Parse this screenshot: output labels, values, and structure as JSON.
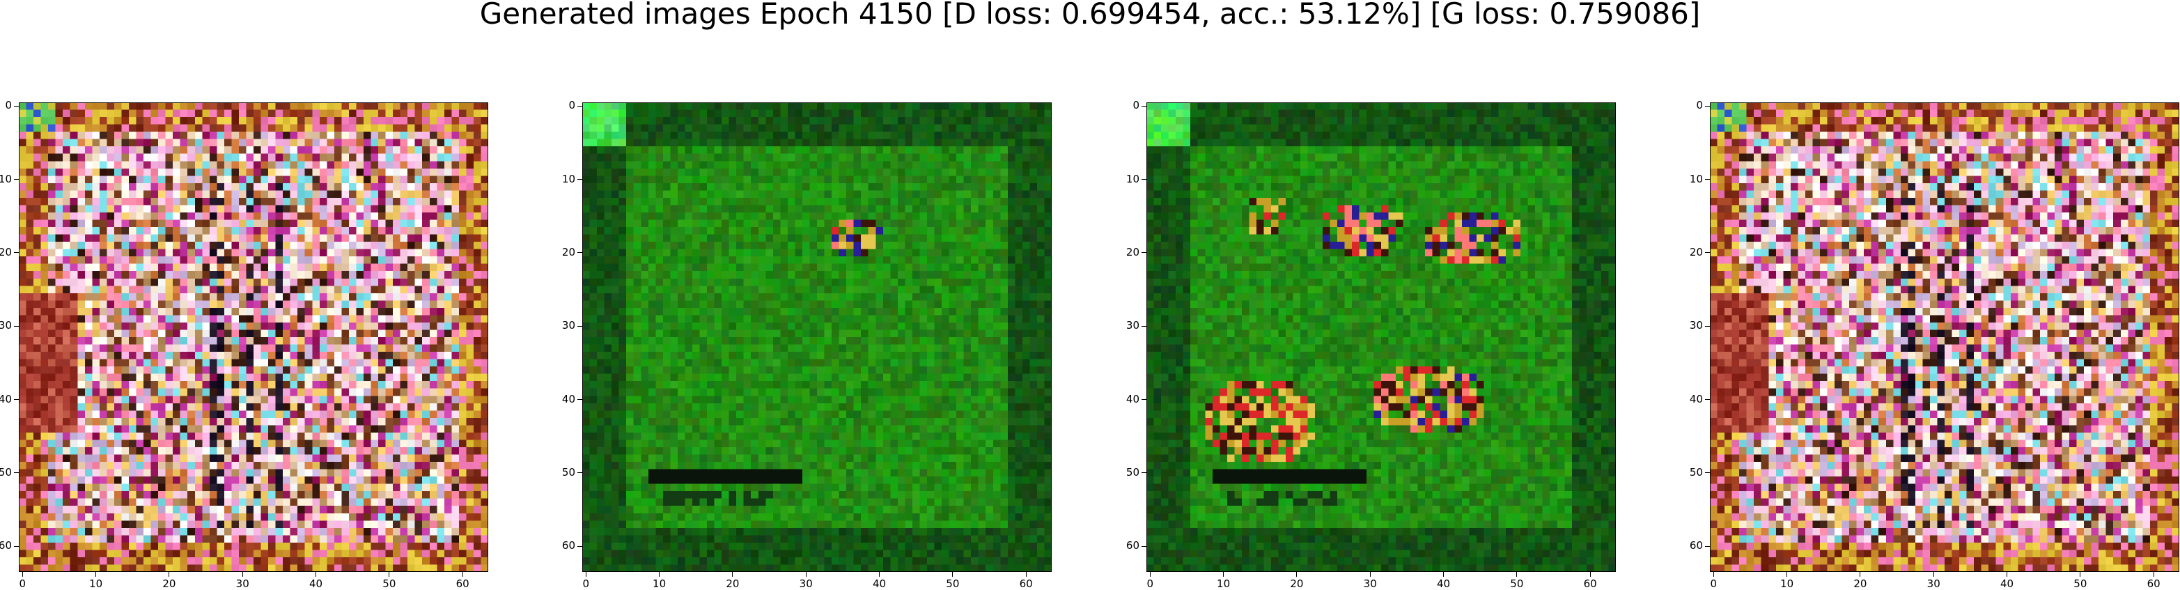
{
  "title": "Generated images Epoch 4150 [D loss: 0.699454, acc.: 53.12%] [G loss: 0.759086]",
  "axes_ticks": {
    "x": [
      "0",
      "10",
      "20",
      "30",
      "40",
      "50",
      "60"
    ],
    "y": [
      "0",
      "10",
      "20",
      "30",
      "40",
      "50",
      "60"
    ]
  },
  "panels": [
    {
      "name": "generated-image-1",
      "palette": "multicolor-noise"
    },
    {
      "name": "generated-image-2",
      "palette": "green"
    },
    {
      "name": "generated-image-3",
      "palette": "green-with-red-yellow-blobs"
    },
    {
      "name": "generated-image-4",
      "palette": "multicolor-noise"
    }
  ]
}
